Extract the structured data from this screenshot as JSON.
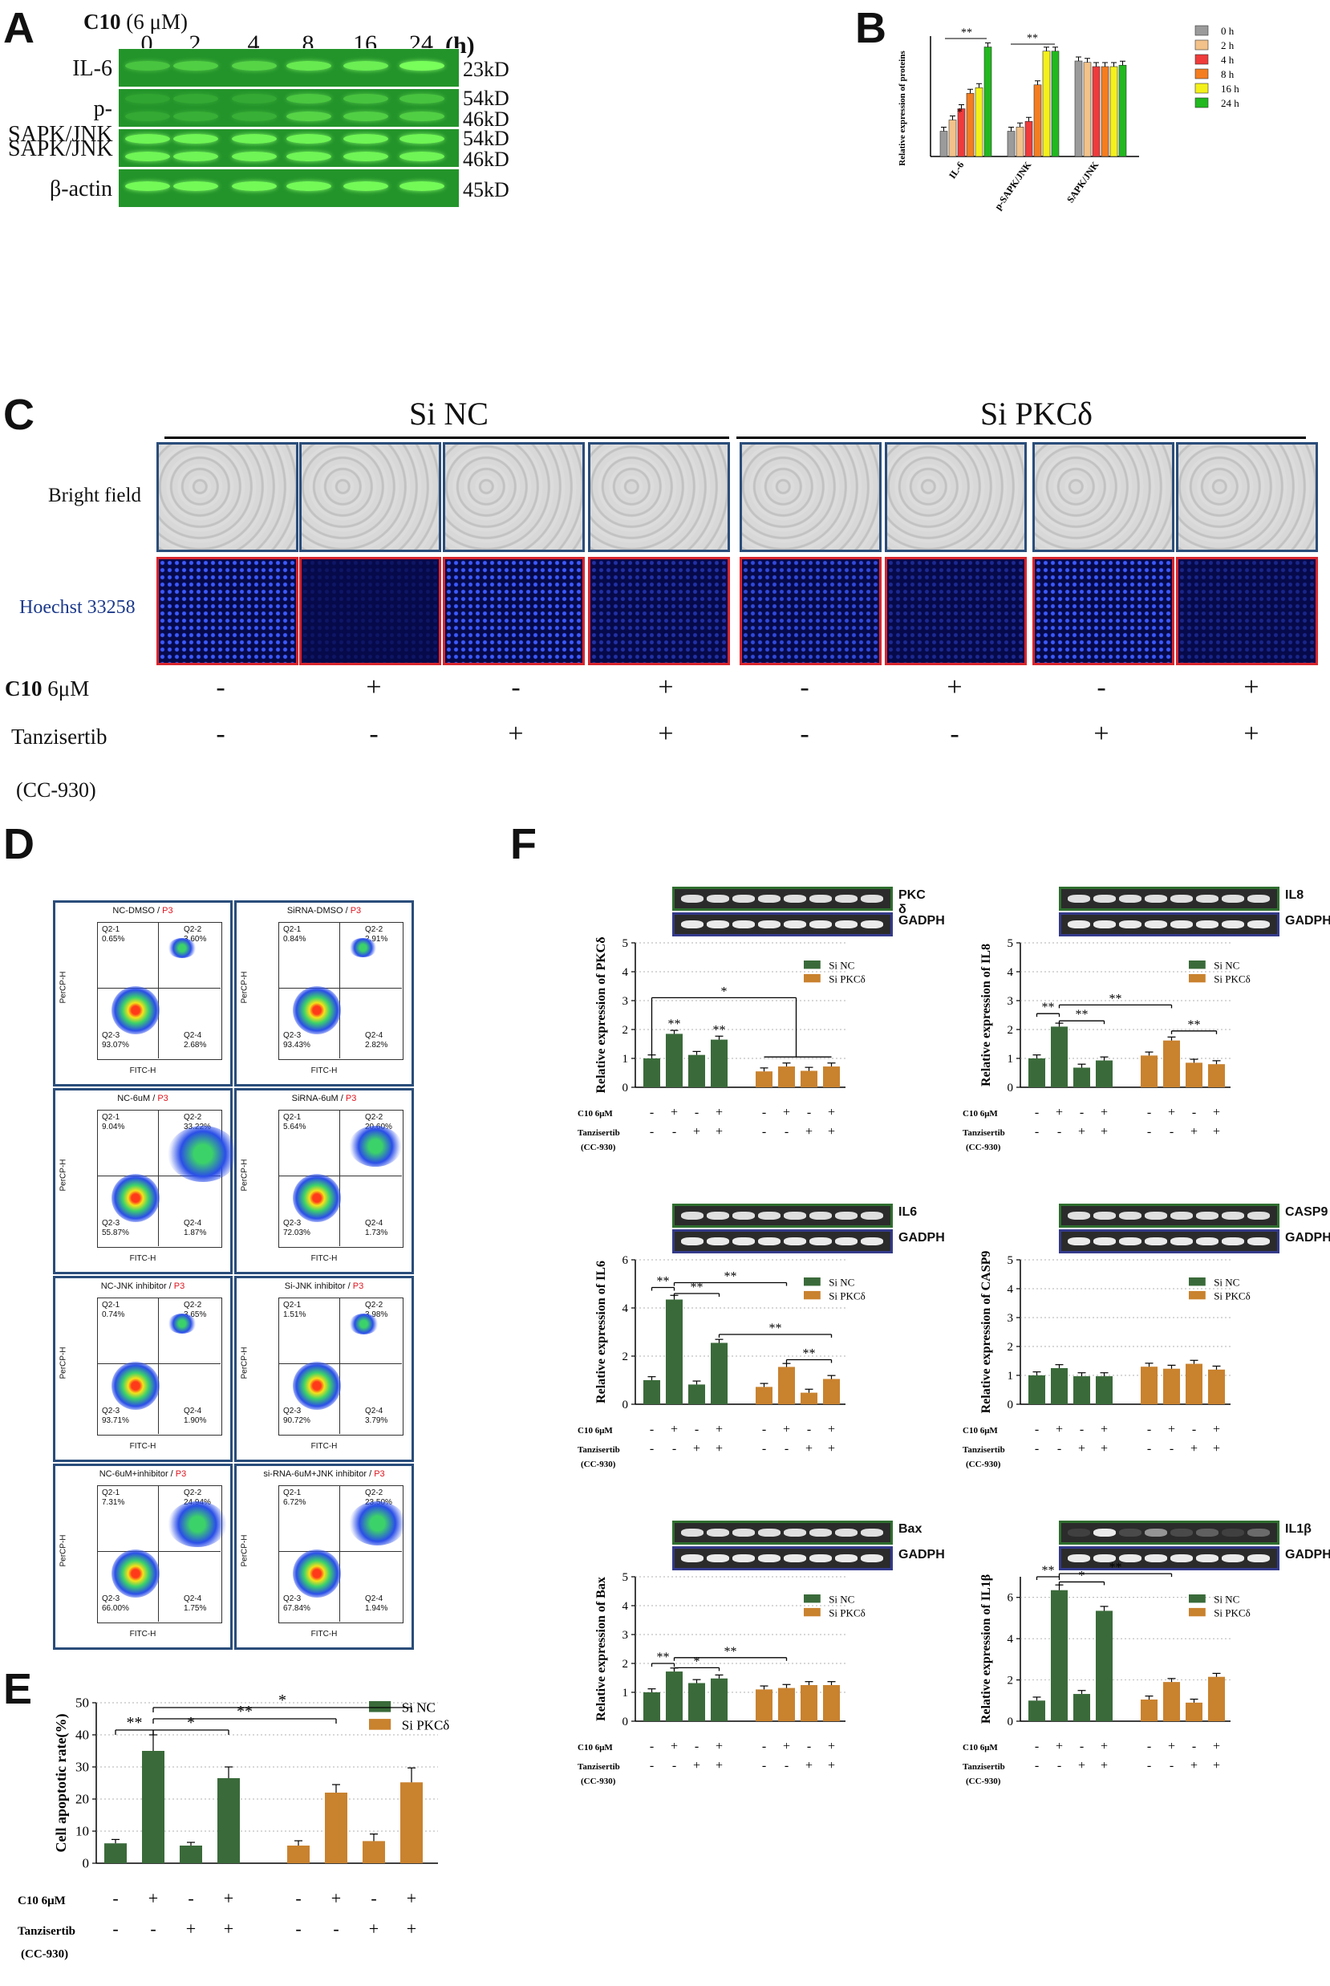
{
  "panel_A": {
    "letter": "A",
    "treatment": "C10",
    "dose": "(6 μM)",
    "hours": [
      "0",
      "2",
      "4",
      "8",
      "16",
      "24"
    ],
    "hours_unit": "(h)",
    "blots": [
      {
        "label": "IL-6",
        "weights": [
          "23kD"
        ],
        "intensity": [
          0.45,
          0.55,
          0.6,
          0.8,
          0.85,
          1.0
        ]
      },
      {
        "label": "p-SAPK/JNK",
        "weights": [
          "54kD",
          "46kD"
        ],
        "intensity": [
          0.2,
          0.25,
          0.25,
          0.6,
          0.55,
          0.55
        ]
      },
      {
        "label": "SAPK/JNK",
        "weights": [
          "54kD",
          "46kD"
        ],
        "intensity": [
          0.9,
          0.9,
          0.9,
          0.9,
          0.9,
          0.9
        ]
      },
      {
        "label": "β-actin",
        "weights": [
          "45kD"
        ],
        "intensity": [
          0.95,
          0.95,
          0.95,
          0.95,
          0.95,
          0.95
        ]
      }
    ]
  },
  "panel_B": {
    "letter": "B",
    "ylabel": "Relative expression of proteins",
    "legend": [
      "0 h",
      "2 h",
      "4 h",
      "8 h",
      "16 h",
      "24 h"
    ],
    "colors": [
      "#9b9b9b",
      "#f2c28a",
      "#ef3b3b",
      "#f47d20",
      "#f4f01a",
      "#22b81f"
    ],
    "significance": [
      "*",
      "**",
      "**"
    ]
  },
  "panel_C": {
    "letter": "C",
    "groups": [
      "Si NC",
      "Si PKCδ"
    ],
    "row_labels": [
      "Bright field",
      "Hoechst 33258"
    ],
    "c10_label": "C10 6μM",
    "tanz_label": "Tanzisertib",
    "tanz_sub": "(CC-930)",
    "c10_signs": [
      "-",
      "+",
      "-",
      "+",
      "-",
      "+",
      "-",
      "+"
    ],
    "tanz_signs": [
      "-",
      "-",
      "+",
      "+",
      "-",
      "-",
      "+",
      "+"
    ]
  },
  "panel_D": {
    "letter": "D",
    "plots": [
      {
        "title": "NC-DMSO",
        "q1": "0.65%",
        "q2": "3.60%",
        "q3": "93.07%",
        "q4": "2.68%"
      },
      {
        "title": "SiRNA-DMSO",
        "q1": "0.84%",
        "q2": "2.91%",
        "q3": "93.43%",
        "q4": "2.82%"
      },
      {
        "title": "NC-6uM",
        "q1": "9.04%",
        "q2": "33.22%",
        "q3": "55.87%",
        "q4": "1.87%"
      },
      {
        "title": "SiRNA-6uM",
        "q1": "5.64%",
        "q2": "20.60%",
        "q3": "72.03%",
        "q4": "1.73%"
      },
      {
        "title": "NC-JNK inhibitor",
        "q1": "0.74%",
        "q2": "3.65%",
        "q3": "93.71%",
        "q4": "1.90%"
      },
      {
        "title": "Si-JNK inhibitor",
        "q1": "1.51%",
        "q2": "3.98%",
        "q3": "90.72%",
        "q4": "3.79%"
      },
      {
        "title": "NC-6uM+inhibitor",
        "q1": "7.31%",
        "q2": "24.94%",
        "q3": "66.00%",
        "q4": "1.75%"
      },
      {
        "title": "si-RNA-6uM+JNK inhibitor",
        "q1": "6.72%",
        "q2": "23.50%",
        "q3": "67.84%",
        "q4": "1.94%"
      }
    ],
    "gate": "P3",
    "xaxis": "FITC-H",
    "yaxis": "PerCP-H",
    "q_names": [
      "Q2-1",
      "Q2-2",
      "Q2-3",
      "Q2-4"
    ]
  },
  "panel_E": {
    "letter": "E"
  },
  "panel_F": {
    "letter": "F"
  },
  "treat_labels": {
    "c10": "C10 6μM",
    "tanz": "Tanzisertib",
    "tanz_sub": "(CC-930)"
  },
  "legend_groups": [
    "Si NC",
    "Si PKCδ"
  ],
  "chart_data": [
    {
      "id": "B",
      "type": "bar",
      "categories": [
        "IL-6",
        "p-SAPK/JNK",
        "SAPK/JNK"
      ],
      "ylabel": "Relative expression of proteins",
      "ylim": [
        0,
        0.8
      ],
      "series": [
        {
          "name": "0 h",
          "values": [
            0.18,
            0.18,
            0.68
          ]
        },
        {
          "name": "2 h",
          "values": [
            0.26,
            0.21,
            0.67
          ]
        },
        {
          "name": "4 h",
          "values": [
            0.34,
            0.25,
            0.64
          ]
        },
        {
          "name": "8 h",
          "values": [
            0.45,
            0.51,
            0.64
          ]
        },
        {
          "name": "16 h",
          "values": [
            0.49,
            0.75,
            0.64
          ]
        },
        {
          "name": "24 h",
          "values": [
            0.78,
            0.75,
            0.65
          ]
        }
      ]
    },
    {
      "id": "E",
      "type": "bar",
      "ylabel": "Cell apoptotic rate(%)",
      "ylim": [
        0,
        50
      ],
      "yticks": [
        0,
        10,
        20,
        30,
        40,
        50
      ],
      "series": [
        {
          "name": "Si NC",
          "values": [
            6.2,
            35.0,
            5.5,
            26.5
          ]
        },
        {
          "name": "Si PKCδ",
          "values": [
            5.5,
            22.0,
            6.9,
            25.2
          ]
        }
      ],
      "errors": [
        [
          1.2,
          5.0,
          1.0,
          3.5
        ],
        [
          1.5,
          2.5,
          2.2,
          4.5
        ]
      ],
      "significance": [
        "**",
        "*",
        "**",
        "*"
      ]
    },
    {
      "id": "F-PKCd",
      "type": "bar",
      "ylabel": "Relative expression of PKCδ",
      "ylim": [
        0,
        5
      ],
      "yticks": [
        0,
        1,
        2,
        3,
        4,
        5
      ],
      "gel_top": "PKC δ",
      "gel_bottom": "GADPH",
      "series": [
        {
          "name": "Si NC",
          "values": [
            1.0,
            1.85,
            1.12,
            1.65
          ]
        },
        {
          "name": "Si PKCδ",
          "values": [
            0.55,
            0.72,
            0.57,
            0.72
          ]
        }
      ],
      "significance": [
        "**",
        "**",
        "*"
      ]
    },
    {
      "id": "F-IL8",
      "type": "bar",
      "ylabel": "Relative expression of IL8",
      "ylim": [
        0,
        5
      ],
      "yticks": [
        0,
        1,
        2,
        3,
        4,
        5
      ],
      "gel_top": "IL8",
      "gel_bottom": "GADPH",
      "series": [
        {
          "name": "Si NC",
          "values": [
            1.0,
            2.1,
            0.68,
            0.93
          ]
        },
        {
          "name": "Si PKCδ",
          "values": [
            1.1,
            1.62,
            0.85,
            0.8
          ]
        }
      ],
      "significance": [
        "**",
        "**",
        "**",
        "**"
      ]
    },
    {
      "id": "F-IL6",
      "type": "bar",
      "ylabel": "Relative expression of IL6",
      "ylim": [
        0,
        6
      ],
      "yticks": [
        0,
        2,
        4,
        6
      ],
      "gel_top": "IL6",
      "gel_bottom": "GADPH",
      "series": [
        {
          "name": "Si NC",
          "values": [
            1.0,
            4.35,
            0.82,
            2.55
          ]
        },
        {
          "name": "Si PKCδ",
          "values": [
            0.72,
            1.55,
            0.48,
            1.05
          ]
        }
      ],
      "significance": [
        "**",
        "**",
        "**",
        "**",
        "**"
      ]
    },
    {
      "id": "F-CASP9",
      "type": "bar",
      "ylabel": "Relative expression of CASP9",
      "ylim": [
        0,
        5
      ],
      "yticks": [
        0,
        1,
        2,
        3,
        4,
        5
      ],
      "gel_top": "CASP9",
      "gel_bottom": "GADPH",
      "series": [
        {
          "name": "Si NC",
          "values": [
            1.0,
            1.25,
            0.97,
            0.97
          ]
        },
        {
          "name": "Si PKCδ",
          "values": [
            1.3,
            1.23,
            1.4,
            1.2
          ]
        }
      ],
      "significance": []
    },
    {
      "id": "F-Bax",
      "type": "bar",
      "ylabel": "Relative expression of Bax",
      "ylim": [
        0,
        5
      ],
      "yticks": [
        0,
        1,
        2,
        3,
        4,
        5
      ],
      "gel_top": "Bax",
      "gel_bottom": "GADPH",
      "series": [
        {
          "name": "Si NC",
          "values": [
            1.0,
            1.72,
            1.32,
            1.48
          ]
        },
        {
          "name": "Si PKCδ",
          "values": [
            1.1,
            1.15,
            1.25,
            1.25
          ]
        }
      ],
      "significance": [
        "**",
        "*",
        "**"
      ]
    },
    {
      "id": "F-IL1b",
      "type": "bar",
      "ylabel": "Relative expression of IL1β",
      "ylim": [
        0,
        7
      ],
      "yticks": [
        0,
        2,
        4,
        6
      ],
      "gel_top": "IL1β",
      "gel_bottom": "GADPH",
      "series": [
        {
          "name": "Si NC",
          "values": [
            1.0,
            6.35,
            1.32,
            5.35
          ]
        },
        {
          "name": "Si PKCδ",
          "values": [
            1.05,
            1.9,
            0.9,
            2.15
          ]
        }
      ],
      "significance": [
        "**",
        "*",
        "**"
      ]
    }
  ]
}
